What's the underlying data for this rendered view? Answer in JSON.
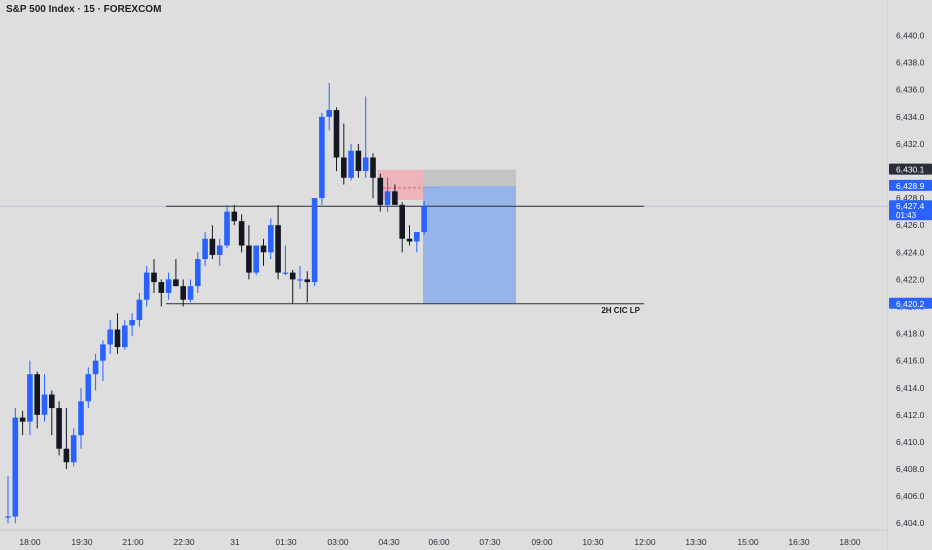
{
  "header": {
    "title": "S&P 500 Index · 15 · FOREXCOM"
  },
  "chart_data": {
    "type": "candlestick",
    "symbol": "S&P 500 Index",
    "interval": "15",
    "source": "FOREXCOM",
    "yaxis": {
      "ticks": [
        "6,404.0",
        "6,406.0",
        "6,408.0",
        "6,410.0",
        "6,412.0",
        "6,414.0",
        "6,416.0",
        "6,418.0",
        "6,420.0",
        "6,422.0",
        "6,424.0",
        "6,426.0",
        "6,428.0",
        "6,430.0",
        "6,432.0",
        "6,434.0",
        "6,436.0",
        "6,438.0",
        "6,440.0"
      ],
      "ylim": [
        6403.5,
        6441.0
      ]
    },
    "xaxis": {
      "ticks": [
        "18:00",
        "19:30",
        "21:00",
        "22:30",
        "31",
        "01:30",
        "03:00",
        "04:30",
        "06:00",
        "07:30",
        "09:00",
        "10:30",
        "12:00",
        "13:30",
        "15:00",
        "16:30",
        "18:00"
      ]
    },
    "price_labels": [
      {
        "text": "6,430.1",
        "value": 6430.1,
        "color": "#2a2e39"
      },
      {
        "text": "6,428.9",
        "value": 6428.9,
        "color": "#2962ff"
      },
      {
        "text": "6,427.4",
        "value": 6427.4,
        "countdown": "01:43",
        "color": "#2962ff"
      },
      {
        "text": "6,420.2",
        "value": 6420.2,
        "color": "#2962ff"
      }
    ],
    "horizontal_lines": [
      {
        "value": 6427.4,
        "label": ""
      },
      {
        "value": 6420.2,
        "label": "2H CIC LP"
      }
    ],
    "candles": [
      {
        "o": 6404.5,
        "h": 6407.5,
        "l": 6404.0,
        "c": 6404.5
      },
      {
        "o": 6404.5,
        "h": 6412.5,
        "l": 6404.0,
        "c": 6411.8
      },
      {
        "o": 6411.8,
        "h": 6412.3,
        "l": 6410.5,
        "c": 6411.5
      },
      {
        "o": 6411.5,
        "h": 6416.0,
        "l": 6410.5,
        "c": 6415.0
      },
      {
        "o": 6415.0,
        "h": 6415.2,
        "l": 6411.0,
        "c": 6412.0
      },
      {
        "o": 6412.0,
        "h": 6415.0,
        "l": 6411.5,
        "c": 6413.5
      },
      {
        "o": 6413.5,
        "h": 6413.8,
        "l": 6410.5,
        "c": 6412.5
      },
      {
        "o": 6412.5,
        "h": 6413.0,
        "l": 6409.0,
        "c": 6409.5
      },
      {
        "o": 6409.5,
        "h": 6412.5,
        "l": 6408.0,
        "c": 6408.5
      },
      {
        "o": 6408.5,
        "h": 6411.0,
        "l": 6408.2,
        "c": 6410.5
      },
      {
        "o": 6410.5,
        "h": 6414.0,
        "l": 6409.5,
        "c": 6413.0
      },
      {
        "o": 6413.0,
        "h": 6415.5,
        "l": 6412.5,
        "c": 6415.0
      },
      {
        "o": 6415.0,
        "h": 6416.5,
        "l": 6413.8,
        "c": 6416.0
      },
      {
        "o": 6416.0,
        "h": 6417.5,
        "l": 6414.5,
        "c": 6417.2
      },
      {
        "o": 6417.2,
        "h": 6419.0,
        "l": 6416.5,
        "c": 6418.3
      },
      {
        "o": 6418.3,
        "h": 6419.5,
        "l": 6416.5,
        "c": 6417.0
      },
      {
        "o": 6417.0,
        "h": 6419.0,
        "l": 6416.8,
        "c": 6418.6
      },
      {
        "o": 6418.6,
        "h": 6419.5,
        "l": 6417.8,
        "c": 6419.0
      },
      {
        "o": 6419.0,
        "h": 6421.0,
        "l": 6418.5,
        "c": 6420.5
      },
      {
        "o": 6420.5,
        "h": 6423.0,
        "l": 6420.0,
        "c": 6422.5
      },
      {
        "o": 6422.5,
        "h": 6423.5,
        "l": 6421.0,
        "c": 6421.8
      },
      {
        "o": 6421.8,
        "h": 6422.0,
        "l": 6420.0,
        "c": 6421.0
      },
      {
        "o": 6421.0,
        "h": 6422.5,
        "l": 6420.5,
        "c": 6422.0
      },
      {
        "o": 6422.0,
        "h": 6423.5,
        "l": 6421.5,
        "c": 6421.5
      },
      {
        "o": 6421.5,
        "h": 6422.0,
        "l": 6420.0,
        "c": 6420.5
      },
      {
        "o": 6420.5,
        "h": 6422.0,
        "l": 6420.3,
        "c": 6421.5
      },
      {
        "o": 6421.5,
        "h": 6424.0,
        "l": 6421.0,
        "c": 6423.5
      },
      {
        "o": 6423.5,
        "h": 6425.5,
        "l": 6423.0,
        "c": 6425.0
      },
      {
        "o": 6425.0,
        "h": 6426.0,
        "l": 6423.5,
        "c": 6423.8
      },
      {
        "o": 6423.8,
        "h": 6425.0,
        "l": 6423.0,
        "c": 6424.5
      },
      {
        "o": 6424.5,
        "h": 6427.5,
        "l": 6424.3,
        "c": 6427.0
      },
      {
        "o": 6427.0,
        "h": 6427.5,
        "l": 6426.0,
        "c": 6426.3
      },
      {
        "o": 6426.3,
        "h": 6426.8,
        "l": 6424.0,
        "c": 6424.5
      },
      {
        "o": 6424.5,
        "h": 6426.0,
        "l": 6422.0,
        "c": 6422.5
      },
      {
        "o": 6422.5,
        "h": 6424.5,
        "l": 6422.3,
        "c": 6424.5
      },
      {
        "o": 6424.5,
        "h": 6425.0,
        "l": 6423.0,
        "c": 6424.0
      },
      {
        "o": 6424.0,
        "h": 6426.5,
        "l": 6423.5,
        "c": 6426.0
      },
      {
        "o": 6426.0,
        "h": 6427.5,
        "l": 6422.0,
        "c": 6422.5
      },
      {
        "o": 6422.5,
        "h": 6424.5,
        "l": 6422.3,
        "c": 6422.5
      },
      {
        "o": 6422.5,
        "h": 6422.7,
        "l": 6420.2,
        "c": 6422.0
      },
      {
        "o": 6422.0,
        "h": 6423.0,
        "l": 6421.3,
        "c": 6422.0
      },
      {
        "o": 6422.0,
        "h": 6422.6,
        "l": 6420.3,
        "c": 6421.8
      },
      {
        "o": 6421.8,
        "h": 6428.0,
        "l": 6421.5,
        "c": 6428.0
      },
      {
        "o": 6428.0,
        "h": 6434.3,
        "l": 6427.5,
        "c": 6434.0
      },
      {
        "o": 6434.0,
        "h": 6436.5,
        "l": 6433.0,
        "c": 6434.5
      },
      {
        "o": 6434.5,
        "h": 6434.7,
        "l": 6430.0,
        "c": 6431.0
      },
      {
        "o": 6431.0,
        "h": 6433.5,
        "l": 6429.0,
        "c": 6429.5
      },
      {
        "o": 6429.5,
        "h": 6432.0,
        "l": 6429.3,
        "c": 6431.5
      },
      {
        "o": 6431.5,
        "h": 6432.0,
        "l": 6429.5,
        "c": 6430.0
      },
      {
        "o": 6430.0,
        "h": 6435.5,
        "l": 6429.5,
        "c": 6431.0
      },
      {
        "o": 6431.0,
        "h": 6431.3,
        "l": 6428.0,
        "c": 6429.5
      },
      {
        "o": 6429.5,
        "h": 6429.8,
        "l": 6427.0,
        "c": 6427.5
      },
      {
        "o": 6427.5,
        "h": 6429.5,
        "l": 6427.0,
        "c": 6428.5
      },
      {
        "o": 6428.5,
        "h": 6429.0,
        "l": 6427.5,
        "c": 6427.5
      },
      {
        "o": 6427.5,
        "h": 6427.7,
        "l": 6424.0,
        "c": 6425.0
      },
      {
        "o": 6425.0,
        "h": 6426.0,
        "l": 6424.5,
        "c": 6424.8
      },
      {
        "o": 6424.8,
        "h": 6425.5,
        "l": 6424.0,
        "c": 6425.5
      },
      {
        "o": 6425.5,
        "h": 6427.8,
        "l": 6425.3,
        "c": 6427.4
      }
    ],
    "position": {
      "entry": 6428.9,
      "stop": 6430.1,
      "target": 6420.2
    },
    "colors": {
      "up": "#2962ff",
      "down": "#131722",
      "stop_zone": "#f2a7ad",
      "target_zone": "#7ea6ee",
      "grid": "#d2d2d2",
      "background": "#dedede"
    },
    "grid": false
  }
}
